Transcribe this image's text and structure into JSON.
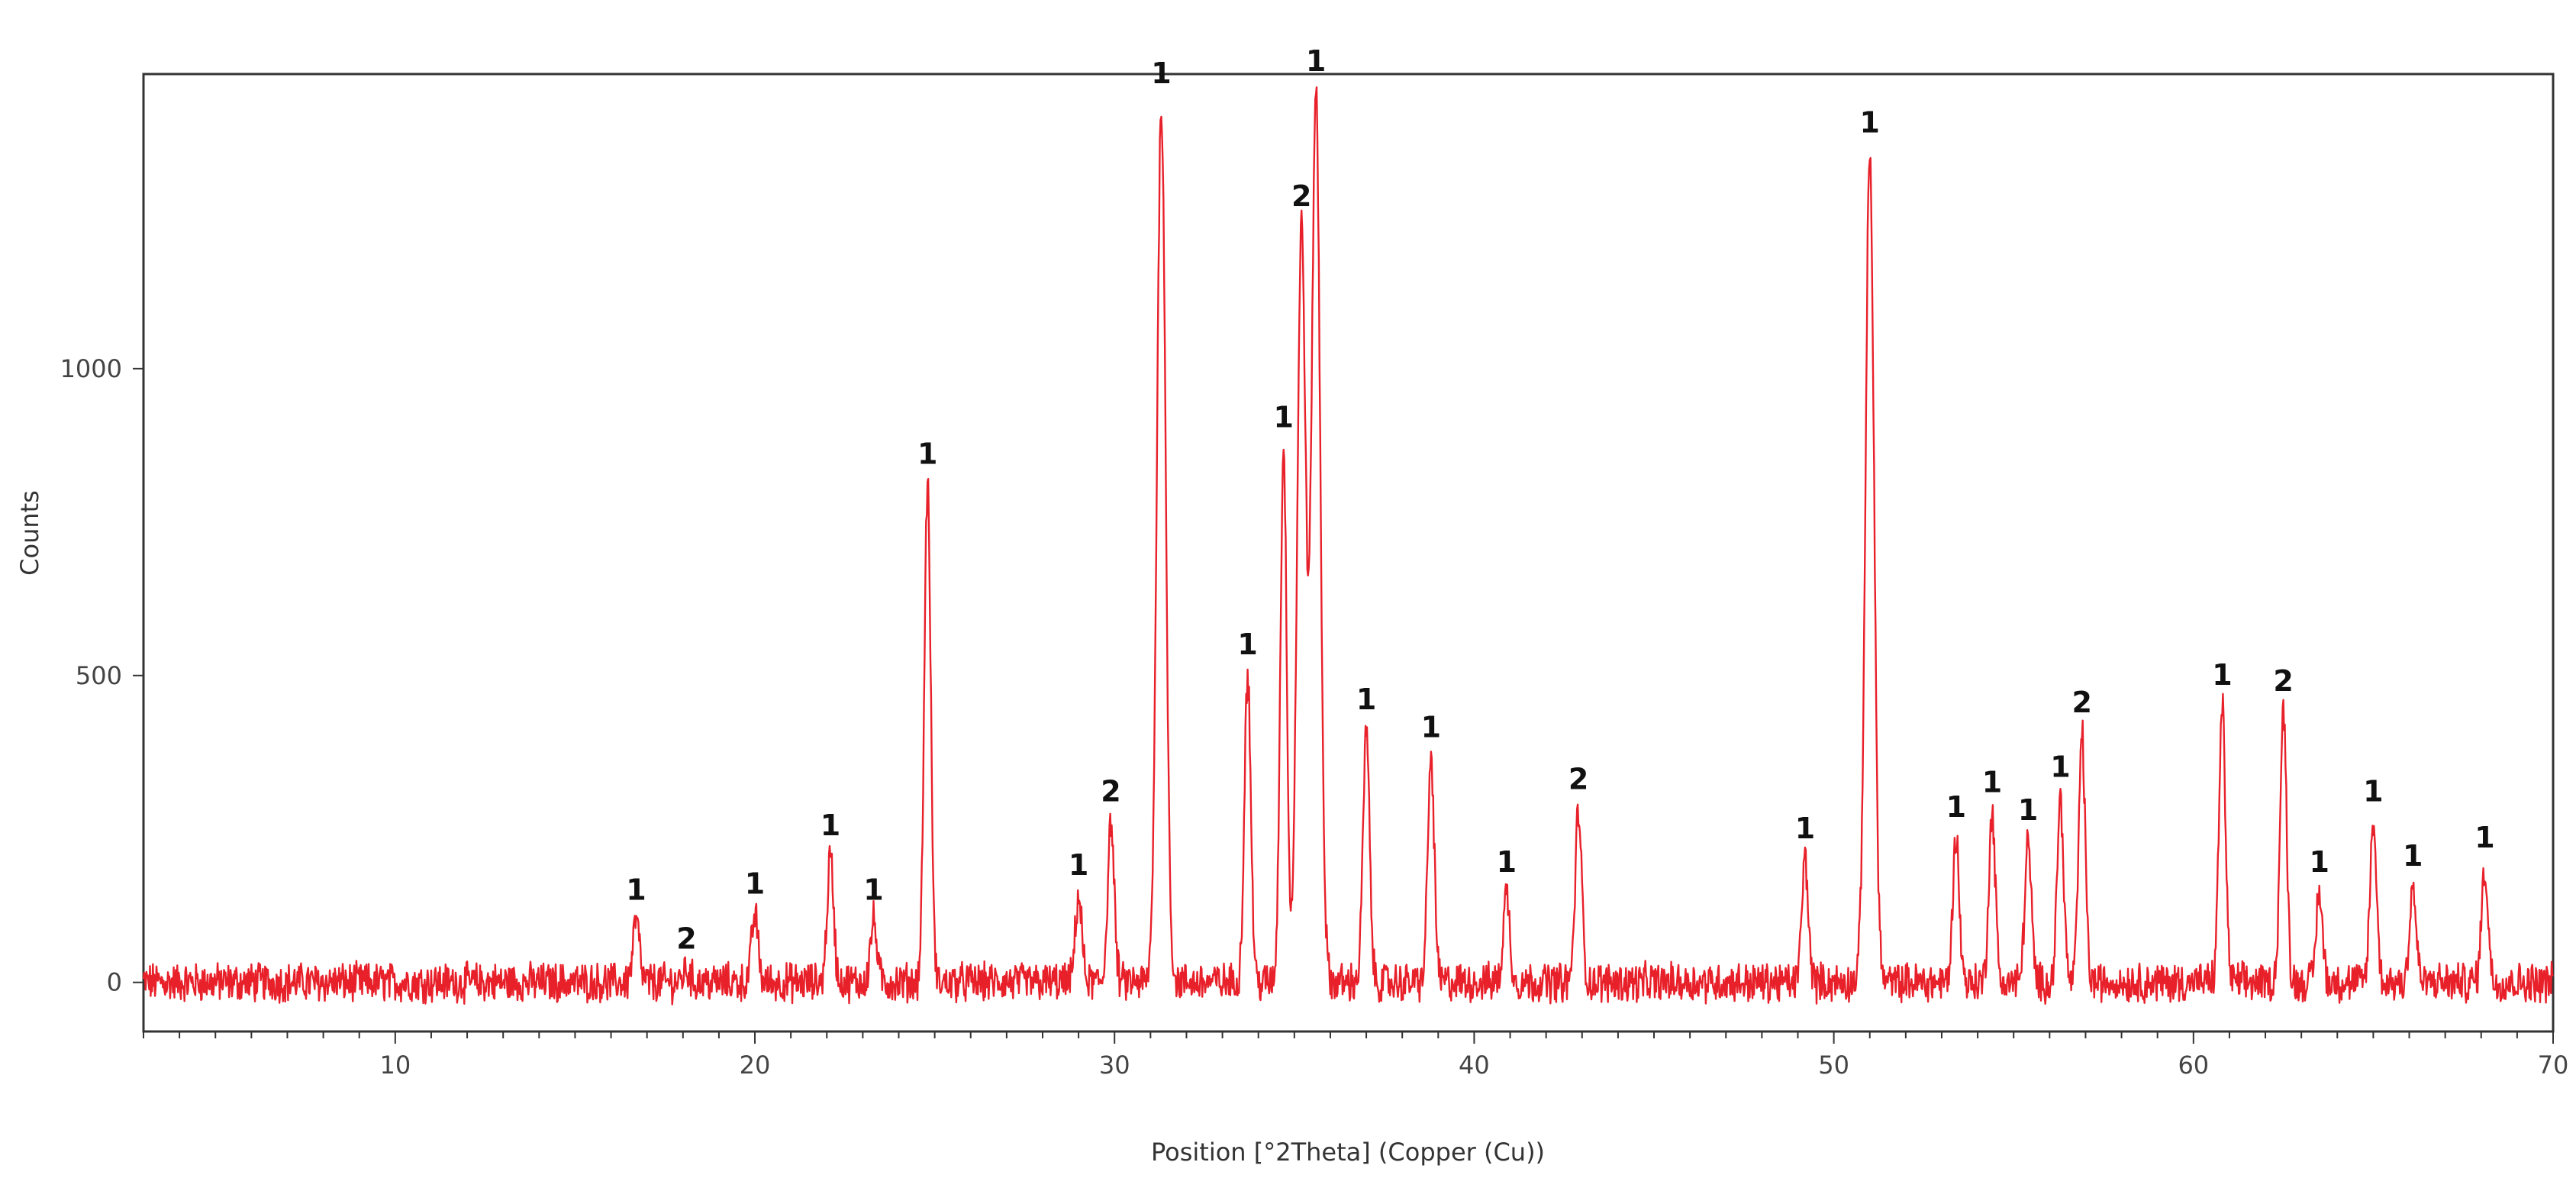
{
  "chart_data": {
    "type": "line",
    "title": "",
    "xlabel": "Position [°2Theta] (Copper (Cu))",
    "ylabel": "Counts",
    "xlim": [
      3,
      70
    ],
    "ylim": [
      -80,
      1480
    ],
    "x_ticks": [
      10,
      20,
      30,
      40,
      50,
      60,
      70
    ],
    "x_tick_labels": [
      "10",
      "20",
      "30",
      "40",
      "50",
      "60",
      "70"
    ],
    "y_ticks": [
      0,
      500,
      1000
    ],
    "y_tick_labels": [
      "0",
      "500",
      "1000"
    ],
    "grid": false,
    "legend": "none",
    "colors": {
      "line": "#e8202a",
      "axis": "#333333"
    },
    "noise_amplitude": 28,
    "peaks": [
      {
        "x": 16.7,
        "y": 100,
        "label": "1"
      },
      {
        "x": 18.1,
        "y": 20,
        "label": "2"
      },
      {
        "x": 20.0,
        "y": 110,
        "label": "1"
      },
      {
        "x": 22.1,
        "y": 205,
        "label": "1"
      },
      {
        "x": 23.3,
        "y": 100,
        "label": "1"
      },
      {
        "x": 24.8,
        "y": 810,
        "label": "1"
      },
      {
        "x": 29.0,
        "y": 140,
        "label": "1"
      },
      {
        "x": 29.9,
        "y": 260,
        "label": "2"
      },
      {
        "x": 31.3,
        "y": 1430,
        "label": "1"
      },
      {
        "x": 33.7,
        "y": 500,
        "label": "1"
      },
      {
        "x": 34.7,
        "y": 870,
        "label": "1"
      },
      {
        "x": 35.2,
        "y": 1230,
        "label": "2"
      },
      {
        "x": 35.6,
        "y": 1450,
        "label": "1"
      },
      {
        "x": 37.0,
        "y": 410,
        "label": "1"
      },
      {
        "x": 38.8,
        "y": 365,
        "label": "1"
      },
      {
        "x": 40.9,
        "y": 145,
        "label": "1"
      },
      {
        "x": 42.9,
        "y": 280,
        "label": "2"
      },
      {
        "x": 49.2,
        "y": 200,
        "label": "1"
      },
      {
        "x": 51.0,
        "y": 1350,
        "label": "1"
      },
      {
        "x": 53.4,
        "y": 235,
        "label": "1"
      },
      {
        "x": 54.4,
        "y": 275,
        "label": "1"
      },
      {
        "x": 55.4,
        "y": 230,
        "label": "1"
      },
      {
        "x": 56.3,
        "y": 300,
        "label": "1"
      },
      {
        "x": 56.9,
        "y": 405,
        "label": "2"
      },
      {
        "x": 60.8,
        "y": 450,
        "label": "1"
      },
      {
        "x": 62.5,
        "y": 440,
        "label": "2"
      },
      {
        "x": 63.5,
        "y": 145,
        "label": "1"
      },
      {
        "x": 65.0,
        "y": 260,
        "label": "1"
      },
      {
        "x": 66.1,
        "y": 155,
        "label": "1"
      },
      {
        "x": 68.1,
        "y": 185,
        "label": "1"
      }
    ]
  }
}
